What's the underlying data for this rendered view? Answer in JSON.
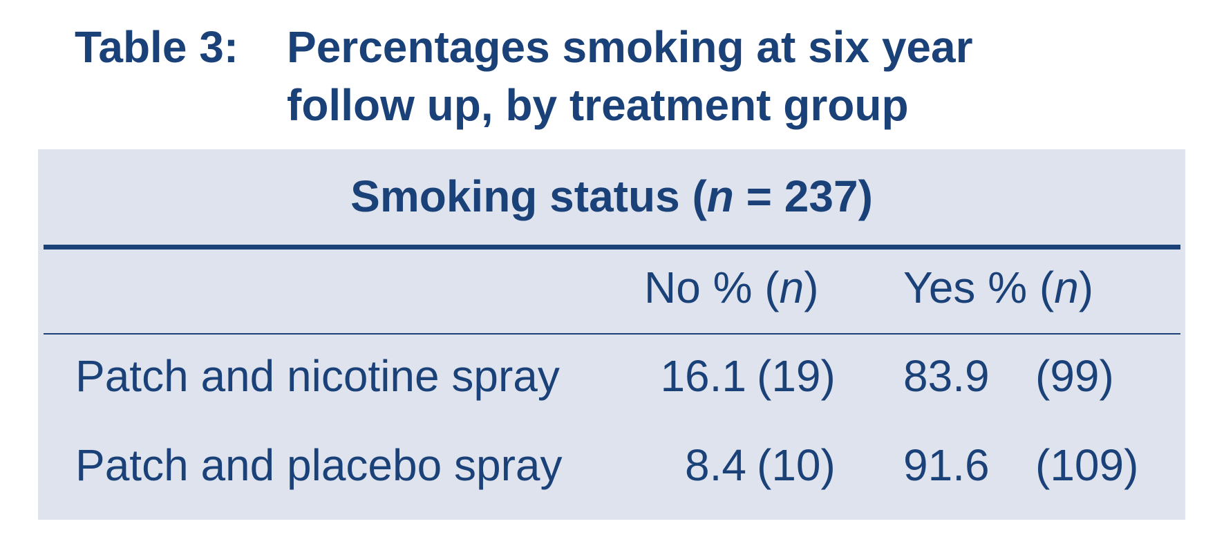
{
  "caption": {
    "label": "Table 3:",
    "line1": "Percentages smoking at six year",
    "line2": "follow up, by treatment group"
  },
  "table": {
    "group_header": {
      "prefix": "Smoking status (",
      "var": "n",
      "suffix": " = 237)"
    },
    "columns": [
      {
        "prefix": "No % (",
        "var": "n",
        "suffix": ")"
      },
      {
        "prefix": "Yes % (",
        "var": "n",
        "suffix": ")"
      }
    ],
    "rows": [
      {
        "label": "Patch and nicotine spray",
        "no_pct": "16.1",
        "no_n": "(19)",
        "yes_pct": "83.9",
        "yes_n": "(99)"
      },
      {
        "label": "Patch and placebo spray",
        "no_pct": "8.4",
        "no_n": "(10)",
        "yes_pct": "91.6",
        "yes_n": "(109)"
      }
    ]
  }
}
